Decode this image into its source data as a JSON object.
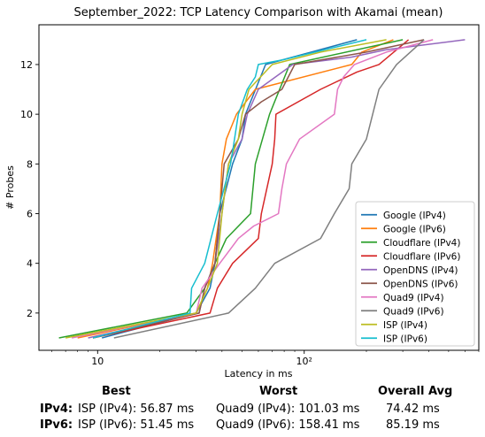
{
  "chart_data": {
    "type": "line",
    "title": "September_2022: TCP Latency Comparison with Akamai (mean)",
    "xlabel": "Latency in ms",
    "ylabel": "# Probes",
    "xscale": "log",
    "xlim": [
      5.2,
      700
    ],
    "ylim": [
      0.5,
      13.6
    ],
    "xticks": [
      {
        "v": 10,
        "label": "10"
      },
      {
        "v": 100,
        "label": "10²"
      }
    ],
    "yticks": [
      2,
      4,
      6,
      8,
      10,
      12
    ],
    "legend_position": "lower-right",
    "grid": false,
    "series": [
      {
        "name": "Google (IPv4)",
        "color": "#1f77b4",
        "x": [
          10.5,
          30,
          35,
          37,
          39,
          45,
          50,
          52,
          65,
          180
        ],
        "y": [
          1,
          2,
          3,
          4,
          6,
          8,
          9,
          10,
          12,
          13
        ]
      },
      {
        "name": "Google (IPv6)",
        "color": "#ff7f0e",
        "x": [
          8,
          30,
          34,
          36,
          39,
          40,
          42,
          47,
          58,
          170,
          190,
          270
        ],
        "y": [
          1,
          2,
          3,
          4,
          6,
          8,
          9,
          10,
          11,
          12,
          12.5,
          13
        ]
      },
      {
        "name": "Cloudflare (IPv4)",
        "color": "#2ca02c",
        "x": [
          6.5,
          27,
          33,
          37,
          42,
          55,
          58,
          68,
          85,
          300
        ],
        "y": [
          1,
          2,
          3,
          4,
          5,
          6,
          8,
          10,
          12,
          13
        ]
      },
      {
        "name": "Cloudflare (IPv6)",
        "color": "#d62728",
        "x": [
          9.5,
          35,
          38,
          45,
          60,
          62,
          70,
          72,
          73,
          120,
          180,
          230,
          320
        ],
        "y": [
          1,
          2,
          3,
          4,
          5,
          6,
          8,
          9,
          10,
          11,
          11.7,
          12,
          13
        ]
      },
      {
        "name": "OpenDNS (IPv4)",
        "color": "#9467bd",
        "x": [
          9,
          31,
          33,
          37,
          40,
          43,
          50,
          53,
          60,
          88,
          170,
          250,
          600
        ],
        "y": [
          1,
          2,
          3,
          4,
          6,
          8,
          9,
          10,
          11,
          12,
          12.3,
          12.6,
          13
        ]
      },
      {
        "name": "OpenDNS (IPv6)",
        "color": "#8c564b",
        "x": [
          9.5,
          31,
          33,
          37,
          39,
          41,
          48,
          52,
          62,
          78,
          90,
          200,
          380
        ],
        "y": [
          1,
          2,
          3,
          4,
          6,
          8,
          9,
          10,
          10.5,
          11,
          12,
          12.5,
          13
        ]
      },
      {
        "name": "Quad9 (IPv4)",
        "color": "#e377c2",
        "x": [
          7.5,
          30,
          32,
          39,
          48,
          57,
          75,
          78,
          82,
          95,
          140,
          145,
          155,
          175,
          250,
          420
        ],
        "y": [
          1,
          2,
          3,
          4,
          5,
          5.5,
          6,
          7,
          8,
          9,
          10,
          11,
          11.5,
          12,
          12.5,
          13
        ]
      },
      {
        "name": "Quad9 (IPv6)",
        "color": "#7f7f7f",
        "x": [
          12,
          43,
          58,
          72,
          120,
          140,
          165,
          170,
          200,
          230,
          280,
          380
        ],
        "y": [
          1,
          2,
          3,
          4,
          5,
          6,
          7,
          8,
          9,
          11,
          12,
          13
        ]
      },
      {
        "name": "ISP (IPv4)",
        "color": "#bcbd22",
        "x": [
          7,
          30,
          34,
          38,
          40,
          43,
          48,
          50,
          54,
          70,
          120,
          250
        ],
        "y": [
          1,
          2,
          3,
          4,
          6,
          8,
          9,
          10,
          11,
          12,
          12.5,
          13
        ]
      },
      {
        "name": "ISP (IPv6)",
        "color": "#17becf",
        "x": [
          9.5,
          28,
          28.5,
          33,
          38,
          44,
          45,
          48,
          53,
          58,
          60,
          80,
          200
        ],
        "y": [
          1,
          2,
          3,
          4,
          6,
          8,
          8.5,
          10,
          11,
          11.5,
          12,
          12.2,
          13
        ]
      }
    ]
  },
  "summary": {
    "headers": {
      "best": "Best",
      "worst": "Worst",
      "avg": "Overall Avg"
    },
    "rows": [
      {
        "label": "IPv4:",
        "best": "ISP (IPv4): 56.87 ms",
        "worst": "Quad9 (IPv4): 101.03 ms",
        "avg": "74.42 ms"
      },
      {
        "label": "IPv6:",
        "best": "ISP (IPv6): 51.45 ms",
        "worst": "Quad9 (IPv6): 158.41 ms",
        "avg": "85.19 ms"
      }
    ]
  }
}
